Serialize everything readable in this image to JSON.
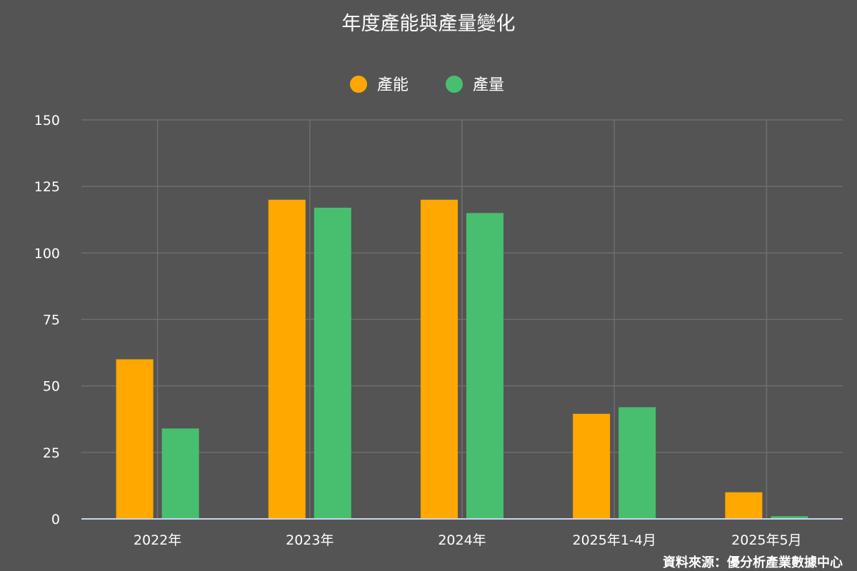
{
  "chart_data": {
    "type": "bar",
    "title": "年度產能與產量變化",
    "categories": [
      "2022年",
      "2023年",
      "2024年",
      "2025年1-4月",
      "2025年5月"
    ],
    "series": [
      {
        "name": "產能",
        "values": [
          60,
          120,
          120,
          39.5,
          10
        ],
        "color": "#FFA800"
      },
      {
        "name": "產量",
        "values": [
          34,
          117,
          115,
          42,
          1
        ],
        "color": "#47BF6F"
      }
    ],
    "xlabel": "",
    "ylabel": "",
    "ylim": [
      0,
      150
    ],
    "yticks": [
      0,
      25,
      50,
      75,
      100,
      125,
      150
    ],
    "grid": true,
    "legend_position": "top-center",
    "source": "資料來源：優分析產業數據中心"
  },
  "colors": {
    "background": "#545454",
    "grid": "#6e6e6e",
    "axis": "#c8d4f0"
  }
}
